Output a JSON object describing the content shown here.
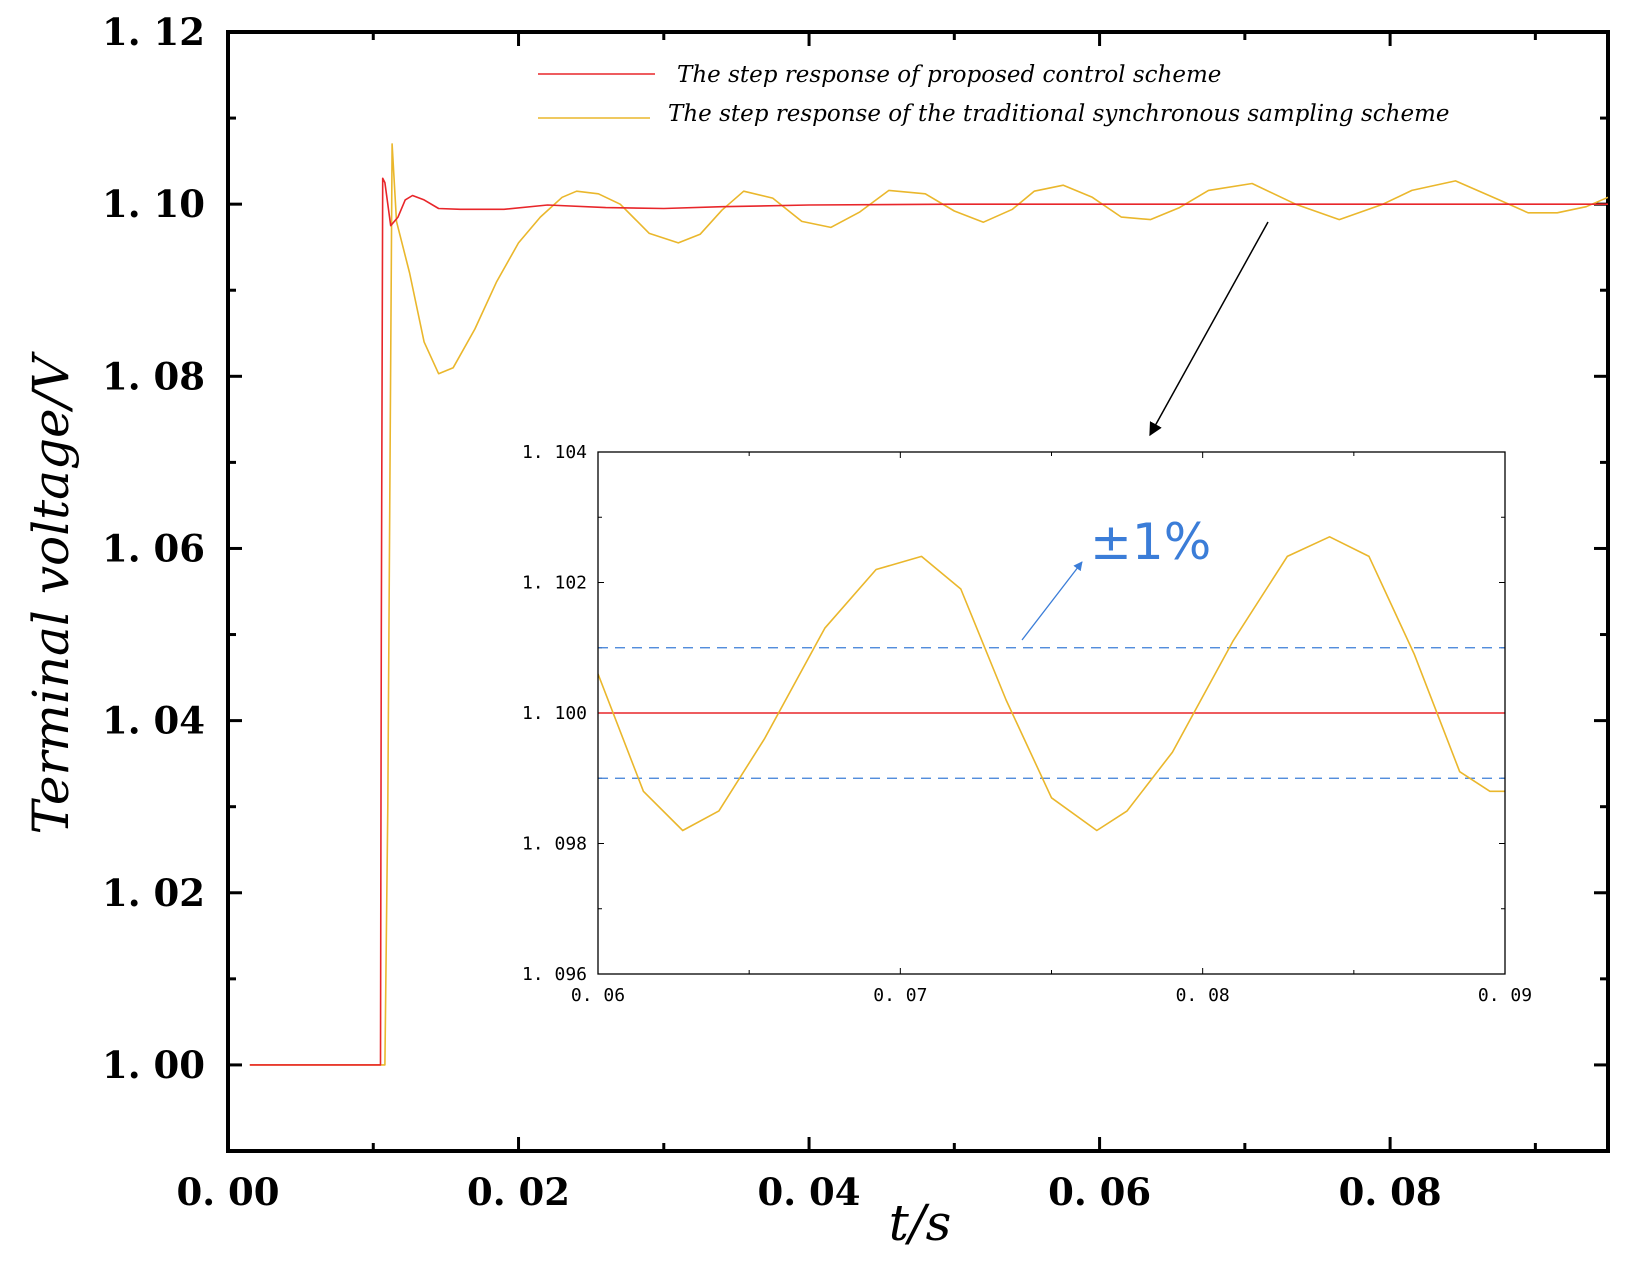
{
  "chart_data": {
    "type": "line",
    "main": {
      "xlabel": "t/s",
      "ylabel": "Terminal voltage/V",
      "xlim": [
        0,
        0.095
      ],
      "ylim": [
        0.99,
        1.12
      ],
      "xticks": [
        {
          "v": 0.0,
          "label": "0. 00"
        },
        {
          "v": 0.02,
          "label": "0. 02"
        },
        {
          "v": 0.04,
          "label": "0. 04"
        },
        {
          "v": 0.06,
          "label": "0. 06"
        },
        {
          "v": 0.08,
          "label": "0. 08"
        }
      ],
      "yticks": [
        {
          "v": 1.0,
          "label": "1. 00"
        },
        {
          "v": 1.02,
          "label": "1. 02"
        },
        {
          "v": 1.04,
          "label": "1. 04"
        },
        {
          "v": 1.06,
          "label": "1. 06"
        },
        {
          "v": 1.08,
          "label": "1. 08"
        },
        {
          "v": 1.1,
          "label": "1. 10"
        },
        {
          "v": 1.12,
          "label": "1. 12"
        }
      ],
      "series": [
        {
          "name": "The step response of proposed control scheme",
          "color": "#e8262a",
          "points": [
            [
              0.0015,
              1.0
            ],
            [
              0.0105,
              1.0
            ],
            [
              0.01055,
              1.05
            ],
            [
              0.01065,
              1.103
            ],
            [
              0.0108,
              1.1025
            ],
            [
              0.0112,
              1.0975
            ],
            [
              0.0117,
              1.0985
            ],
            [
              0.0122,
              1.1005
            ],
            [
              0.0127,
              1.101
            ],
            [
              0.0135,
              1.1005
            ],
            [
              0.0145,
              1.0995
            ],
            [
              0.016,
              1.0994
            ],
            [
              0.019,
              1.0994
            ],
            [
              0.022,
              1.0999
            ],
            [
              0.026,
              1.0996
            ],
            [
              0.03,
              1.0995
            ],
            [
              0.034,
              1.0997
            ],
            [
              0.04,
              1.0999
            ],
            [
              0.05,
              1.1
            ],
            [
              0.06,
              1.1
            ],
            [
              0.07,
              1.1
            ],
            [
              0.08,
              1.1
            ],
            [
              0.09,
              1.1
            ],
            [
              0.095,
              1.1
            ]
          ]
        },
        {
          "name": "The step response of the traditional synchronous sampling scheme",
          "color": "#eab72c",
          "points": [
            [
              0.0015,
              1.0
            ],
            [
              0.0108,
              1.0
            ],
            [
              0.011,
              1.03
            ],
            [
              0.0113,
              1.107
            ],
            [
              0.0116,
              1.098
            ],
            [
              0.0125,
              1.092
            ],
            [
              0.0135,
              1.084
            ],
            [
              0.0145,
              1.0803
            ],
            [
              0.0155,
              1.081
            ],
            [
              0.017,
              1.0855
            ],
            [
              0.0185,
              1.091
            ],
            [
              0.02,
              1.0955
            ],
            [
              0.0215,
              1.0985
            ],
            [
              0.023,
              1.1008
            ],
            [
              0.024,
              1.1015
            ],
            [
              0.0255,
              1.1012
            ],
            [
              0.027,
              1.1
            ],
            [
              0.029,
              1.0966
            ],
            [
              0.031,
              1.0955
            ],
            [
              0.0325,
              1.0965
            ],
            [
              0.034,
              1.0993
            ],
            [
              0.0355,
              1.1015
            ],
            [
              0.0375,
              1.1007
            ],
            [
              0.0395,
              1.098
            ],
            [
              0.0415,
              1.0973
            ],
            [
              0.0435,
              1.0991
            ],
            [
              0.0455,
              1.1016
            ],
            [
              0.048,
              1.1012
            ],
            [
              0.05,
              1.0992
            ],
            [
              0.052,
              1.0979
            ],
            [
              0.054,
              1.0994
            ],
            [
              0.0555,
              1.1015
            ],
            [
              0.0575,
              1.1022
            ],
            [
              0.0595,
              1.1008
            ],
            [
              0.0615,
              1.0985
            ],
            [
              0.0635,
              1.0982
            ],
            [
              0.0655,
              1.0996
            ],
            [
              0.0675,
              1.1016
            ],
            [
              0.0705,
              1.1024
            ],
            [
              0.0735,
              1.1
            ],
            [
              0.0765,
              1.0982
            ],
            [
              0.0795,
              1.1
            ],
            [
              0.0815,
              1.1016
            ],
            [
              0.0845,
              1.1027
            ],
            [
              0.0875,
              1.1005
            ],
            [
              0.0895,
              1.099
            ],
            [
              0.0915,
              1.099
            ],
            [
              0.0935,
              1.0997
            ],
            [
              0.095,
              1.1008
            ]
          ]
        }
      ],
      "legend_position": "top-right"
    },
    "inset": {
      "xlim": [
        0.06,
        0.09
      ],
      "ylim": [
        1.096,
        1.104
      ],
      "xticks": [
        {
          "v": 0.06,
          "label": "0. 06"
        },
        {
          "v": 0.07,
          "label": "0. 07"
        },
        {
          "v": 0.08,
          "label": "0. 08"
        },
        {
          "v": 0.09,
          "label": "0. 09"
        }
      ],
      "yticks": [
        {
          "v": 1.096,
          "label": "1. 096"
        },
        {
          "v": 1.098,
          "label": "1. 098"
        },
        {
          "v": 1.1,
          "label": "1. 100"
        },
        {
          "v": 1.102,
          "label": "1. 102"
        },
        {
          "v": 1.104,
          "label": "1. 104"
        }
      ],
      "red_level": 1.1,
      "band": [
        1.099,
        1.101
      ],
      "band_color": "#3b7dd8",
      "yellow_points": [
        [
          0.06,
          1.1006
        ],
        [
          0.0615,
          1.0988
        ],
        [
          0.0628,
          1.0982
        ],
        [
          0.064,
          1.0985
        ],
        [
          0.0655,
          1.0996
        ],
        [
          0.0675,
          1.1013
        ],
        [
          0.0692,
          1.1022
        ],
        [
          0.0707,
          1.1024
        ],
        [
          0.072,
          1.1019
        ],
        [
          0.0735,
          1.1002
        ],
        [
          0.075,
          1.0987
        ],
        [
          0.0765,
          1.0982
        ],
        [
          0.0775,
          1.0985
        ],
        [
          0.079,
          1.0994
        ],
        [
          0.081,
          1.1011
        ],
        [
          0.0828,
          1.1024
        ],
        [
          0.0842,
          1.1027
        ],
        [
          0.0855,
          1.1024
        ],
        [
          0.087,
          1.1009
        ],
        [
          0.0885,
          1.0991
        ],
        [
          0.0895,
          1.0988
        ],
        [
          0.09,
          1.0988
        ]
      ]
    },
    "annotation": {
      "text": "±1%",
      "color": "#3b7dd8"
    }
  }
}
